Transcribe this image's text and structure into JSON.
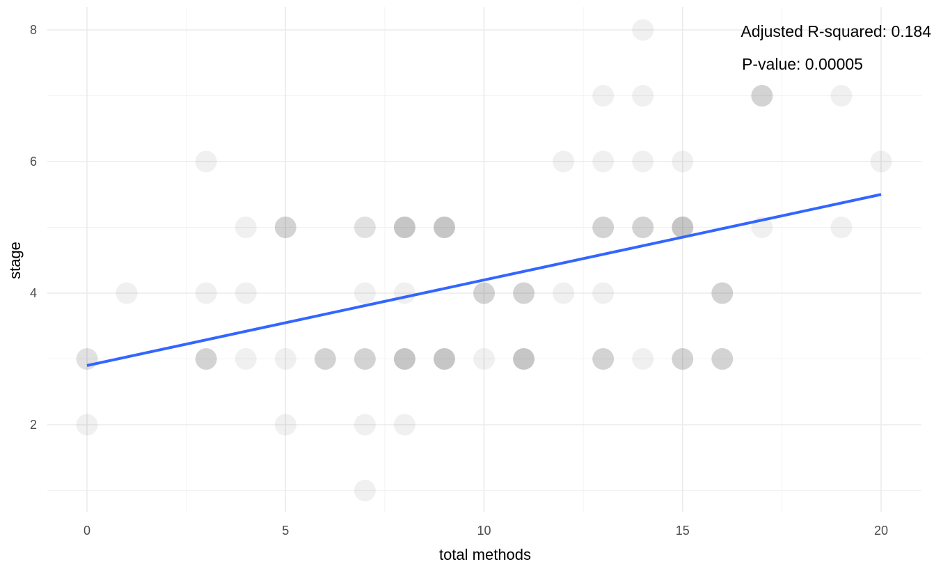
{
  "chart_data": {
    "type": "scatter",
    "title": "",
    "xlabel": "total methods",
    "ylabel": "stage",
    "xlim": [
      -1,
      20.5
    ],
    "ylim": [
      0.7,
      8.3
    ],
    "x_ticks": [
      0,
      5,
      10,
      15,
      20
    ],
    "y_ticks": [
      2,
      4,
      6,
      8
    ],
    "grid": true,
    "legend": "none",
    "point_color": "#000000",
    "point_opacity": 0.06,
    "fit_line": {
      "type": "linear",
      "color": "#3366ff",
      "x": [
        0,
        20
      ],
      "y": [
        2.9,
        5.5
      ]
    },
    "annotations": [
      "Adjusted R-squared: 0.184",
      "P-value: 0.00005"
    ],
    "points": [
      {
        "x": 0,
        "y": 3
      },
      {
        "x": 0,
        "y": 3
      },
      {
        "x": 0,
        "y": 2
      },
      {
        "x": 1,
        "y": 4
      },
      {
        "x": 3,
        "y": 6
      },
      {
        "x": 3,
        "y": 4
      },
      {
        "x": 3,
        "y": 3
      },
      {
        "x": 3,
        "y": 3
      },
      {
        "x": 3,
        "y": 3
      },
      {
        "x": 4,
        "y": 5
      },
      {
        "x": 4,
        "y": 4
      },
      {
        "x": 4,
        "y": 3
      },
      {
        "x": 5,
        "y": 5
      },
      {
        "x": 5,
        "y": 5
      },
      {
        "x": 5,
        "y": 5
      },
      {
        "x": 5,
        "y": 3
      },
      {
        "x": 5,
        "y": 2
      },
      {
        "x": 6,
        "y": 3
      },
      {
        "x": 6,
        "y": 3
      },
      {
        "x": 6,
        "y": 3
      },
      {
        "x": 7,
        "y": 5
      },
      {
        "x": 7,
        "y": 5
      },
      {
        "x": 7,
        "y": 4
      },
      {
        "x": 7,
        "y": 3
      },
      {
        "x": 7,
        "y": 3
      },
      {
        "x": 7,
        "y": 3
      },
      {
        "x": 7,
        "y": 2
      },
      {
        "x": 7,
        "y": 1
      },
      {
        "x": 8,
        "y": 5
      },
      {
        "x": 8,
        "y": 5
      },
      {
        "x": 8,
        "y": 5
      },
      {
        "x": 8,
        "y": 5
      },
      {
        "x": 8,
        "y": 4
      },
      {
        "x": 8,
        "y": 3
      },
      {
        "x": 8,
        "y": 3
      },
      {
        "x": 8,
        "y": 3
      },
      {
        "x": 8,
        "y": 3
      },
      {
        "x": 8,
        "y": 2
      },
      {
        "x": 9,
        "y": 5
      },
      {
        "x": 9,
        "y": 5
      },
      {
        "x": 9,
        "y": 5
      },
      {
        "x": 9,
        "y": 5
      },
      {
        "x": 9,
        "y": 3
      },
      {
        "x": 9,
        "y": 3
      },
      {
        "x": 9,
        "y": 3
      },
      {
        "x": 9,
        "y": 3
      },
      {
        "x": 10,
        "y": 4
      },
      {
        "x": 10,
        "y": 4
      },
      {
        "x": 10,
        "y": 4
      },
      {
        "x": 10,
        "y": 3
      },
      {
        "x": 11,
        "y": 4
      },
      {
        "x": 11,
        "y": 4
      },
      {
        "x": 11,
        "y": 4
      },
      {
        "x": 11,
        "y": 3
      },
      {
        "x": 11,
        "y": 3
      },
      {
        "x": 11,
        "y": 3
      },
      {
        "x": 11,
        "y": 3
      },
      {
        "x": 12,
        "y": 6
      },
      {
        "x": 12,
        "y": 4
      },
      {
        "x": 13,
        "y": 7
      },
      {
        "x": 13,
        "y": 6
      },
      {
        "x": 13,
        "y": 5
      },
      {
        "x": 13,
        "y": 5
      },
      {
        "x": 13,
        "y": 5
      },
      {
        "x": 13,
        "y": 4
      },
      {
        "x": 13,
        "y": 3
      },
      {
        "x": 13,
        "y": 3
      },
      {
        "x": 13,
        "y": 3
      },
      {
        "x": 14,
        "y": 8
      },
      {
        "x": 14,
        "y": 7
      },
      {
        "x": 14,
        "y": 6
      },
      {
        "x": 14,
        "y": 5
      },
      {
        "x": 14,
        "y": 5
      },
      {
        "x": 14,
        "y": 5
      },
      {
        "x": 14,
        "y": 3
      },
      {
        "x": 15,
        "y": 6
      },
      {
        "x": 15,
        "y": 5
      },
      {
        "x": 15,
        "y": 5
      },
      {
        "x": 15,
        "y": 5
      },
      {
        "x": 15,
        "y": 5
      },
      {
        "x": 15,
        "y": 3
      },
      {
        "x": 15,
        "y": 3
      },
      {
        "x": 15,
        "y": 3
      },
      {
        "x": 16,
        "y": 4
      },
      {
        "x": 16,
        "y": 4
      },
      {
        "x": 16,
        "y": 4
      },
      {
        "x": 16,
        "y": 3
      },
      {
        "x": 16,
        "y": 3
      },
      {
        "x": 16,
        "y": 3
      },
      {
        "x": 17,
        "y": 7
      },
      {
        "x": 17,
        "y": 7
      },
      {
        "x": 17,
        "y": 7
      },
      {
        "x": 17,
        "y": 5
      },
      {
        "x": 19,
        "y": 7
      },
      {
        "x": 19,
        "y": 5
      },
      {
        "x": 20,
        "y": 6
      }
    ]
  }
}
